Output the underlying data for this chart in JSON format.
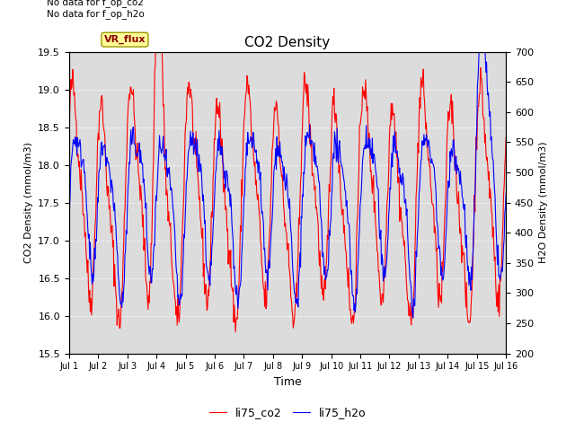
{
  "title": "CO2 Density",
  "xlabel": "Time",
  "ylabel_left": "CO2 Density (mmol/m3)",
  "ylabel_right": "H2O Density (mmol/m3)",
  "ylim_left": [
    15.5,
    19.5
  ],
  "ylim_right": [
    200,
    700
  ],
  "yticks_left": [
    15.5,
    16.0,
    16.5,
    17.0,
    17.5,
    18.0,
    18.5,
    19.0,
    19.5
  ],
  "yticks_right": [
    200,
    250,
    300,
    350,
    400,
    450,
    500,
    550,
    600,
    650,
    700
  ],
  "xtick_labels": [
    "Jul 1",
    "Jul 2",
    "Jul 3",
    "Jul 4",
    "Jul 5",
    "Jul 6",
    "Jul 7",
    "Jul 8",
    "Jul 9",
    "Jul 10",
    "Jul 11",
    "Jul 12",
    "Jul 13",
    "Jul 14",
    "Jul 15",
    "Jul 16"
  ],
  "annotation_text": "No data for f_op_co2\nNo data for f_op_h2o",
  "vr_flux_label": "VR_flux",
  "legend_co2": "li75_co2",
  "legend_h2o": "li75_h2o",
  "color_co2": "#FF0000",
  "color_h2o": "#0000FF",
  "bg_color": "#DCDCDC",
  "fig_bg_color": "#FFFFFF",
  "n_points": 720,
  "co2_base": 17.5,
  "h2o_base": 450
}
